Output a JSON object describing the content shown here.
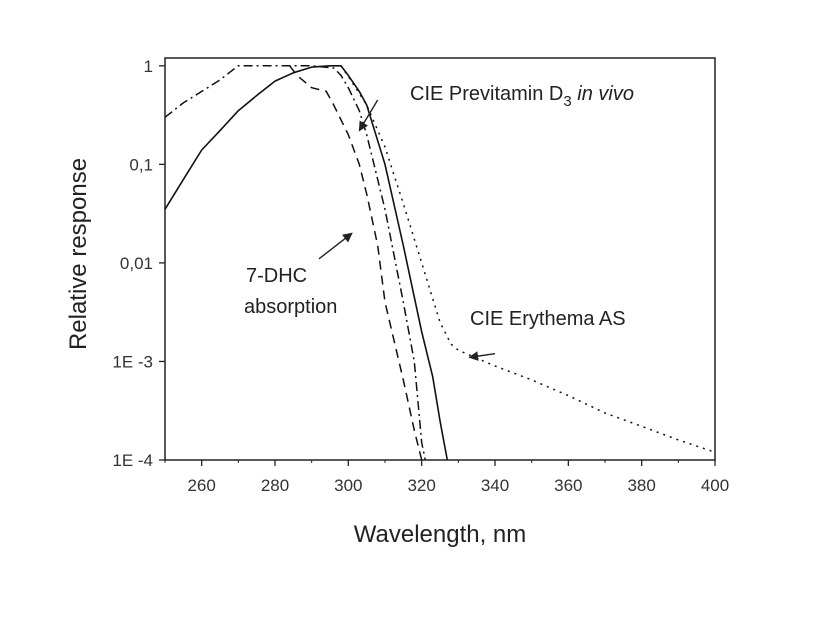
{
  "chart_data": {
    "type": "line",
    "title": "",
    "xlabel": "Wavelength, nm",
    "ylabel": "Relative response",
    "xlim": [
      250,
      400
    ],
    "ylim": [
      0.0001,
      1.2
    ],
    "yscale": "log",
    "x_ticks": [
      260,
      280,
      300,
      320,
      340,
      360,
      380,
      400
    ],
    "x_tick_labels": [
      "260",
      "280",
      "300",
      "320",
      "340",
      "360",
      "380",
      "400"
    ],
    "y_ticks": [
      0.0001,
      0.001,
      0.01,
      0.1,
      1
    ],
    "y_tick_labels": [
      "1E -4",
      "1E -3",
      "0,01",
      "0,1",
      "1"
    ],
    "grid": false,
    "legend": "none",
    "series": [
      {
        "style": "solid",
        "points": [
          [
            250,
            0.035
          ],
          [
            255,
            0.07
          ],
          [
            260,
            0.14
          ],
          [
            265,
            0.22
          ],
          [
            270,
            0.35
          ],
          [
            275,
            0.5
          ],
          [
            280,
            0.7
          ],
          [
            285,
            0.85
          ],
          [
            290,
            0.97
          ],
          [
            295,
            1.0
          ],
          [
            298,
            1.0
          ],
          [
            300,
            0.8
          ],
          [
            303,
            0.55
          ],
          [
            305,
            0.4
          ],
          [
            310,
            0.1
          ],
          [
            315,
            0.015
          ],
          [
            320,
            0.002
          ],
          [
            323,
            0.0007
          ],
          [
            325,
            0.00025
          ],
          [
            327,
            0.0001
          ]
        ]
      },
      {
        "style": "dashdot",
        "points": [
          [
            250,
            0.3
          ],
          [
            255,
            0.42
          ],
          [
            260,
            0.55
          ],
          [
            265,
            0.72
          ],
          [
            268,
            0.88
          ],
          [
            270,
            1.0
          ],
          [
            280,
            1.0
          ],
          [
            290,
            1.0
          ],
          [
            296,
            0.95
          ],
          [
            298,
            0.8
          ],
          [
            300,
            0.6
          ],
          [
            303,
            0.35
          ],
          [
            305,
            0.2
          ],
          [
            310,
            0.035
          ],
          [
            315,
            0.004
          ],
          [
            318,
            0.001
          ],
          [
            320,
            0.00015
          ],
          [
            321,
            0.0001
          ]
        ]
      },
      {
        "style": "dash",
        "points": [
          [
            284,
            1.0
          ],
          [
            286,
            0.8
          ],
          [
            290,
            0.6
          ],
          [
            294,
            0.55
          ],
          [
            296,
            0.4
          ],
          [
            300,
            0.2
          ],
          [
            303,
            0.1
          ],
          [
            305,
            0.05
          ],
          [
            308,
            0.015
          ],
          [
            310,
            0.004
          ],
          [
            315,
            0.00065
          ],
          [
            318,
            0.0002
          ],
          [
            320,
            0.0001
          ]
        ]
      },
      {
        "style": "dot",
        "points": [
          [
            298,
            1.0
          ],
          [
            300,
            0.78
          ],
          [
            305,
            0.4
          ],
          [
            310,
            0.15
          ],
          [
            315,
            0.04
          ],
          [
            320,
            0.01
          ],
          [
            325,
            0.0025
          ],
          [
            328,
            0.0015
          ],
          [
            330,
            0.0013
          ],
          [
            340,
            0.0009
          ],
          [
            350,
            0.00065
          ],
          [
            360,
            0.00045
          ],
          [
            370,
            0.0003
          ],
          [
            380,
            0.00022
          ],
          [
            390,
            0.00016
          ],
          [
            400,
            0.00012
          ]
        ]
      }
    ],
    "annotations": [
      {
        "text": "CIE Previtamin D",
        "subscript": "3",
        "italic_suffix": " in vivo",
        "arrow_from": [
          308,
          0.45
        ],
        "arrow_to": [
          303,
          0.22
        ]
      },
      {
        "text_line1": "7-DHC",
        "text_line2": "absorption",
        "arrow_from": [
          292,
          0.011
        ],
        "arrow_to": [
          301,
          0.02
        ]
      },
      {
        "text": "CIE Erythema AS",
        "arrow_from": [
          340,
          0.0012
        ],
        "arrow_to": [
          333,
          0.0011
        ]
      }
    ],
    "colors": {
      "curves": "#111111",
      "axes": "#222222",
      "text": "#222222"
    }
  }
}
